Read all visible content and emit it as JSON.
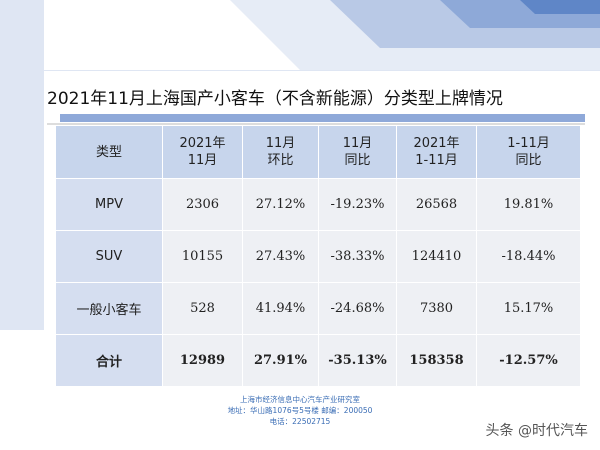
{
  "title": "2021年11月上海国产小客车（不含新能源）分类型上牌情况",
  "table": {
    "header": [
      [
        "类型"
      ],
      [
        "2021年",
        "11月"
      ],
      [
        "11月",
        "环比"
      ],
      [
        "11月",
        "同比"
      ],
      [
        "2021年",
        "1-11月"
      ],
      [
        "1-11月",
        "同比"
      ]
    ],
    "rows": [
      [
        "MPV",
        "2306",
        "27.12%",
        "-19.23%",
        "26568",
        "19.81%"
      ],
      [
        "SUV",
        "10155",
        "27.43%",
        "-38.33%",
        "124410",
        "-18.44%"
      ],
      [
        "一般小客车",
        "528",
        "41.94%",
        "-24.68%",
        "7380",
        "15.17%"
      ],
      [
        "合计",
        "12989",
        "27.91%",
        "-35.13%",
        "158358",
        "-12.57%"
      ]
    ]
  },
  "footer": [
    "上海市经济信息中心汽车产业研究室",
    "地址：华山路1076号5号楼   邮编：200050",
    "电话：22502715"
  ],
  "watermark": "头条 @时代汽车"
}
